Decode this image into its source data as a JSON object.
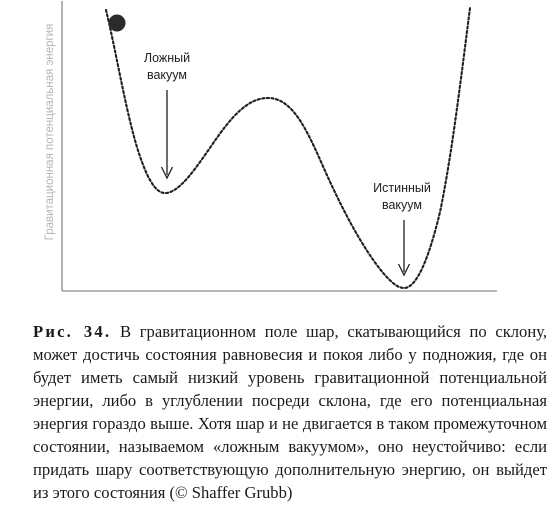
{
  "figure": {
    "y_axis_label": "Гравитационная потенциальная энергия",
    "false_vacuum_label": [
      "Ложный",
      "вакуум"
    ],
    "true_vacuum_label": [
      "Истинный",
      "вакуум"
    ]
  },
  "caption": {
    "label": "Рис. 34.",
    "text": "В гравитационном поле шар, скатывающийся по склону, может достичь состояния равновесия и покоя либо у подножия, где он будет иметь самый низкий уровень гравитационной потенциальной энергии, либо в углублении посреди склона, где его потенциальная энергия гораздо выше. Хотя шар и не двигается в таком промежуточном состоянии, называемом «ложным вакуумом», оно неустойчиво: если придать шару соответствующую дополнительную энергию, он выйдет из этого состояния (© Shaffer Grubb)"
  }
}
